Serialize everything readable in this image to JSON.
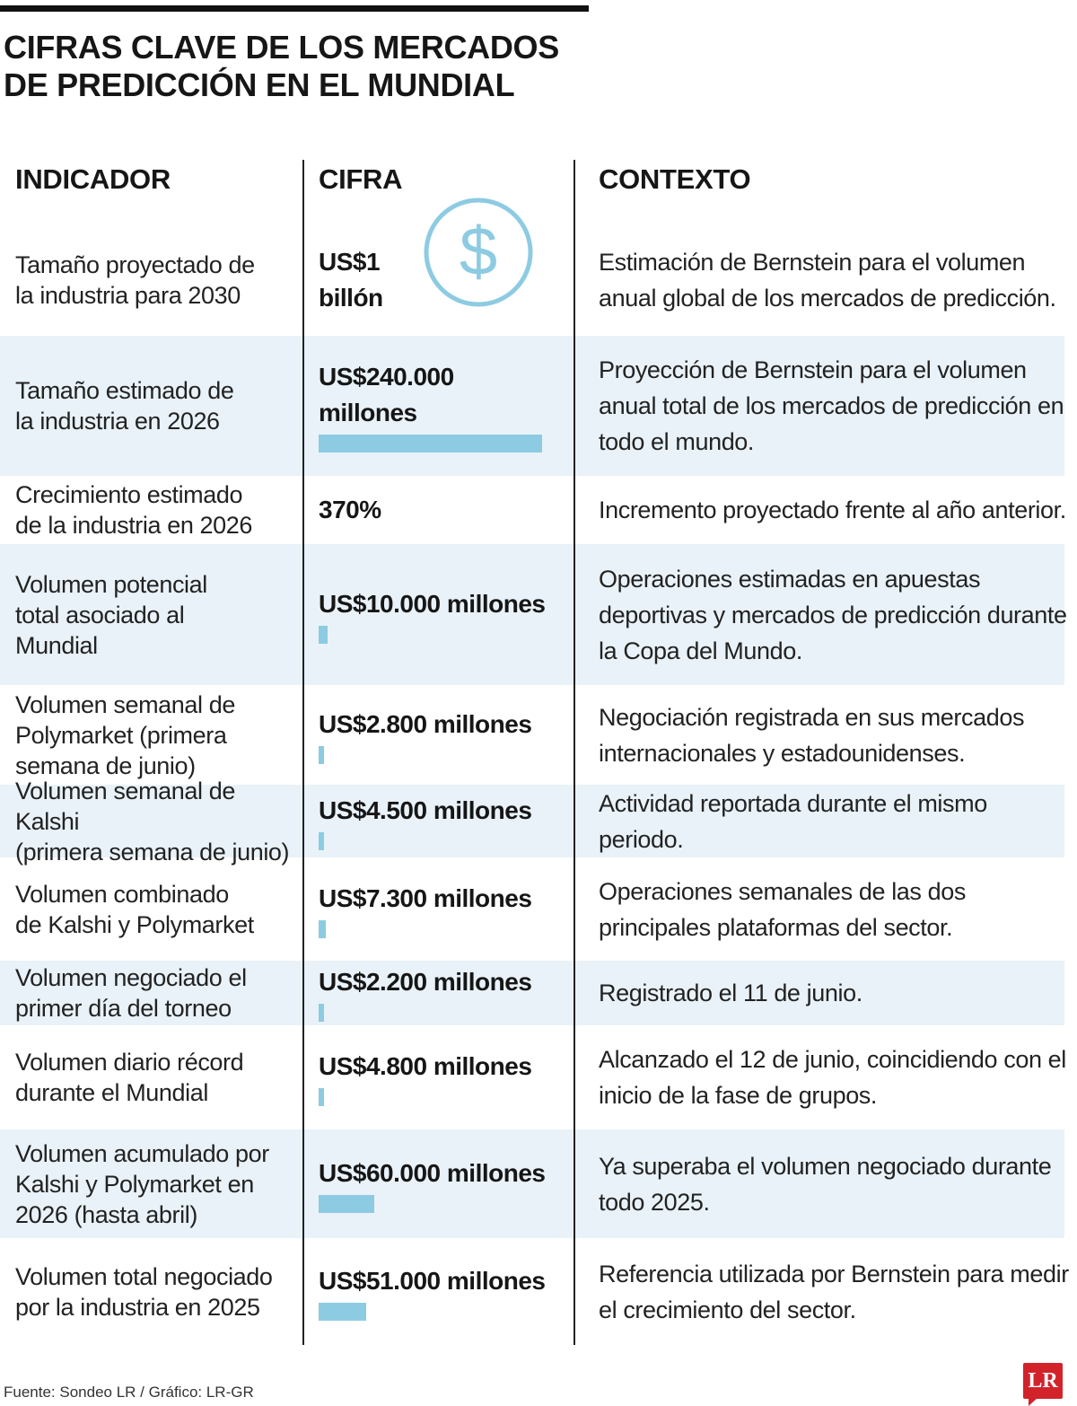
{
  "title": {
    "line1": "CIFRAS CLAVE DE LOS MERCADOS",
    "line2": "DE PREDICCIÓN EN EL MUNDIAL"
  },
  "headers": {
    "indicator": "INDICADOR",
    "figure": "CIFRA",
    "context": "CONTEXTO"
  },
  "icon": "dollar-circle-icon",
  "colors": {
    "bar": "#8dcbe2",
    "shade": "#e9f2f8",
    "logo": "#d2232a"
  },
  "rows": [
    {
      "indicator": "Tamaño proyectado de\nla industria para 2030",
      "figure": "US$1\nbillón",
      "context": "Estimación de Bernstein para el volumen anual global de los mercados de predicción.",
      "bar_fraction": null
    },
    {
      "indicator": "Tamaño estimado de\nla industria en 2026",
      "figure": "US$240.000\nmillones",
      "context": "Proyección de Bernstein para el volumen anual total de los mercados de predicción en todo el mundo.",
      "bar_fraction": 1.0
    },
    {
      "indicator": "Crecimiento estimado\nde la industria en 2026",
      "figure": "370%",
      "context": "Incremento proyectado frente al año anterior.",
      "bar_fraction": null
    },
    {
      "indicator": "Volumen potencial\ntotal asociado al\nMundial",
      "figure": "US$10.000 millones",
      "context": "Operaciones estimadas en apuestas deportivas y mercados de predicción durante la Copa del Mundo.",
      "bar_fraction": 0.0417
    },
    {
      "indicator": "Volumen semanal de\nPolymarket (primera\nsemana de junio)",
      "figure": "US$2.800 millones",
      "context": "Negociación registrada en sus mercados internacionales y estadounidenses.",
      "bar_fraction": 0.0117
    },
    {
      "indicator": "Volumen semanal de Kalshi\n(primera semana de junio)",
      "figure": "US$4.500 millones",
      "context": "Actividad reportada durante el mismo periodo.",
      "bar_fraction": 0.0188
    },
    {
      "indicator": "Volumen combinado\nde Kalshi y Polymarket",
      "figure": "US$7.300 millones",
      "context": "Operaciones semanales de las dos principales plataformas del sector.",
      "bar_fraction": 0.0304
    },
    {
      "indicator": "Volumen negociado el\nprimer día del torneo",
      "figure": "US$2.200 millones",
      "context": "Registrado el 11 de junio.",
      "bar_fraction": 0.0092
    },
    {
      "indicator": "Volumen diario récord\ndurante el Mundial",
      "figure": "US$4.800 millones",
      "context": "Alcanzado el 12 de junio, coincidiendo con el inicio de la fase de grupos.",
      "bar_fraction": 0.02
    },
    {
      "indicator": "Volumen acumulado por\nKalshi y Polymarket en\n2026 (hasta abril)",
      "figure": "US$60.000 millones",
      "context": "Ya superaba el volumen negociado durante todo 2025.",
      "bar_fraction": 0.25
    },
    {
      "indicator": "Volumen total negociado\npor la industria en 2025",
      "figure": "US$51.000 millones",
      "context": "Referencia utilizada por Bernstein para medir el crecimiento del sector.",
      "bar_fraction": 0.2125
    }
  ],
  "footer": "Fuente: Sondeo LR / Gráfico: LR-GR",
  "logo_text": "LR"
}
